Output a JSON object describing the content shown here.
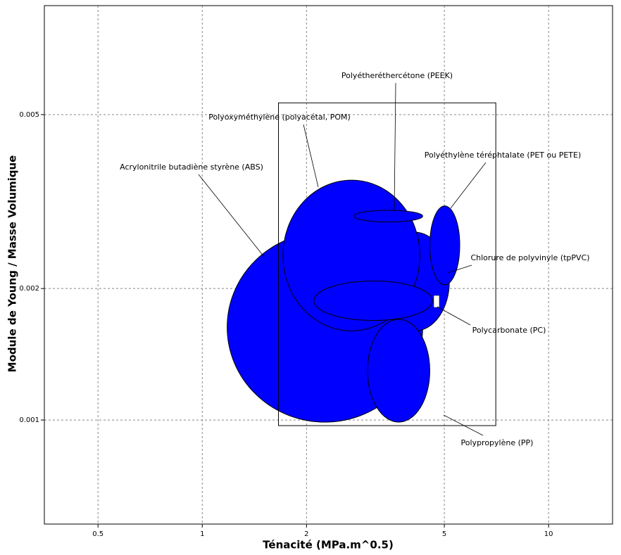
{
  "chart_data": {
    "type": "bubble-range",
    "x_label": "Ténacité (MPa.m^0.5)",
    "y_label": "Module de Young / Masse Volumique",
    "xlim": [
      0.35,
      15.3
    ],
    "ylim": [
      0.000578,
      0.00888
    ],
    "xticks": [
      0.5,
      1,
      2,
      5,
      10
    ],
    "yticks": [
      0.001,
      0.002,
      0.005
    ],
    "log_x": true,
    "log_y": true,
    "grid": true,
    "color": "#0000ff",
    "box": {
      "x": [
        1.66,
        7.04
      ],
      "y": [
        0.000971,
        0.00532
      ]
    },
    "series": [
      {
        "name": "Acrylonitrile butadiène styrène (ABS)",
        "x": [
          1.18,
          4.33
        ],
        "y": [
          0.000989,
          0.00269
        ]
      },
      {
        "name": "Chlorure de polyvinyle (tpPVC)",
        "x": [
          3.27,
          5.17
        ],
        "y": [
          0.0016,
          0.00269
        ]
      },
      {
        "name": "Polyoxyméthylène (polyacétal, POM)",
        "x": [
          1.71,
          4.25
        ],
        "y": [
          0.0016,
          0.00354
        ]
      },
      {
        "name": "Polyétheréthercétone (PEEK)",
        "x": [
          2.74,
          4.33
        ],
        "y": [
          0.00284,
          0.00302
        ]
      },
      {
        "name": "Polycarbonate (PC)",
        "x": [
          2.1,
          4.62
        ],
        "y": [
          0.00169,
          0.00208
        ]
      },
      {
        "name": "Polypropylène (PP)",
        "x": [
          3.0,
          4.54
        ],
        "y": [
          0.000989,
          0.0017
        ]
      },
      {
        "name": "Polyéthylène téréphtalate (PET ou PETE)",
        "x": [
          4.54,
          5.54
        ],
        "y": [
          0.00204,
          0.00309
        ]
      }
    ]
  }
}
